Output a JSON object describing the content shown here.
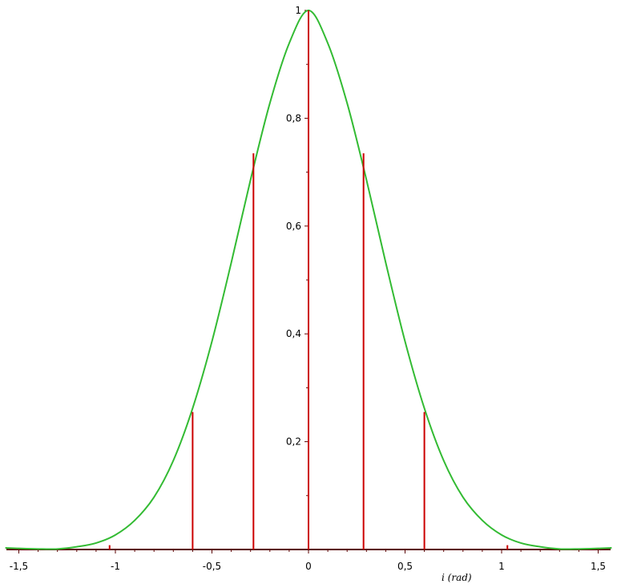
{
  "chart_data": {
    "type": "line",
    "title": "",
    "xlabel": "i (rad)",
    "ylabel": "",
    "xlim": [
      -1.57,
      1.57
    ],
    "ylim": [
      0,
      1
    ],
    "grid": false,
    "x_ticks": [
      {
        "value": -1.5,
        "label": "-1,5"
      },
      {
        "value": -1,
        "label": "-1"
      },
      {
        "value": -0.5,
        "label": "-0,5"
      },
      {
        "value": 0,
        "label": "0"
      },
      {
        "value": 0.5,
        "label": "0,5"
      },
      {
        "value": 1,
        "label": "1"
      },
      {
        "value": 1.5,
        "label": "1,5"
      }
    ],
    "y_ticks": [
      {
        "value": 0.2,
        "label": "0,2"
      },
      {
        "value": 0.4,
        "label": "0,4"
      },
      {
        "value": 0.6,
        "label": "0,6"
      },
      {
        "value": 0.8,
        "label": "0,8"
      },
      {
        "value": 1,
        "label": "1"
      }
    ],
    "series": [
      {
        "color": "#33bb33",
        "style": "curve",
        "x": [
          -1.57,
          -1.5,
          -1.4,
          -1.3,
          -1.2,
          -1.1,
          -1.0,
          -0.9,
          -0.8,
          -0.7,
          -0.6,
          -0.5,
          -0.4,
          -0.3,
          -0.2,
          -0.1,
          0.0,
          0.1,
          0.2,
          0.3,
          0.4,
          0.5,
          0.6,
          0.7,
          0.8,
          0.9,
          1.0,
          1.1,
          1.2,
          1.3,
          1.4,
          1.5,
          1.57
        ],
        "values": [
          0.003,
          0.002,
          0.001,
          0.001,
          0.005,
          0.012,
          0.027,
          0.054,
          0.097,
          0.165,
          0.262,
          0.386,
          0.532,
          0.686,
          0.828,
          0.939,
          1.0,
          0.939,
          0.828,
          0.686,
          0.532,
          0.386,
          0.262,
          0.165,
          0.097,
          0.054,
          0.027,
          0.012,
          0.005,
          0.001,
          0.001,
          0.002,
          0.003
        ]
      },
      {
        "color": "#cc0000",
        "style": "stems",
        "x": [
          -1.03,
          -0.6,
          -0.285,
          0.0,
          0.285,
          0.6,
          1.03
        ],
        "values": [
          0.008,
          0.255,
          0.735,
          1.0,
          0.735,
          0.255,
          0.008
        ]
      }
    ]
  }
}
